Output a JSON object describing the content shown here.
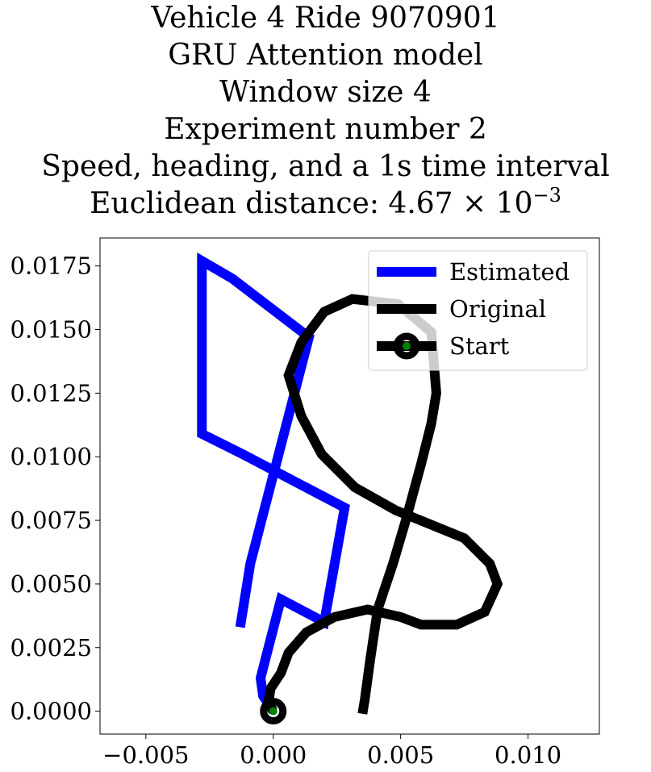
{
  "chart_data": {
    "type": "line",
    "title_lines": [
      "Vehicle 4 Ride 9070901",
      "GRU Attention model",
      "Window size 4",
      "Experiment number 2",
      "Speed, heading, and a 1s time interval"
    ],
    "title_distance": {
      "prefix": "Euclidean distance: 4.67 × 10",
      "exponent": "−3"
    },
    "xlim": [
      -0.0068,
      0.0128
    ],
    "ylim": [
      -0.0009,
      0.0186
    ],
    "x_ticks": [
      {
        "value": -0.005,
        "label": "−0.005"
      },
      {
        "value": 0.0,
        "label": "0.000"
      },
      {
        "value": 0.005,
        "label": "0.005"
      },
      {
        "value": 0.01,
        "label": "0.010"
      }
    ],
    "y_ticks": [
      {
        "value": 0.0,
        "label": "0.0000"
      },
      {
        "value": 0.0025,
        "label": "0.0025"
      },
      {
        "value": 0.005,
        "label": "0.0050"
      },
      {
        "value": 0.0075,
        "label": "0.0075"
      },
      {
        "value": 0.01,
        "label": "0.0100"
      },
      {
        "value": 0.0125,
        "label": "0.0125"
      },
      {
        "value": 0.015,
        "label": "0.0150"
      },
      {
        "value": 0.0175,
        "label": "0.0175"
      }
    ],
    "grid": false,
    "legend_position": "top-right",
    "series": [
      {
        "name": "Estimated",
        "color": "#0000ff",
        "x": [
          0.0,
          -0.0004,
          -0.0005,
          0.0003,
          0.002,
          0.0028,
          -0.0012,
          -0.0028,
          -0.0028,
          -0.0016,
          0.0014,
          -0.0009,
          -0.0013
        ],
        "y": [
          0.0,
          0.0006,
          0.0013,
          0.0044,
          0.0035,
          0.008,
          0.0101,
          0.0109,
          0.0177,
          0.017,
          0.0147,
          0.0058,
          0.0033
        ]
      },
      {
        "name": "Original",
        "color": "#000000",
        "x": [
          0.0,
          -0.0002,
          -0.0001,
          0.0003,
          0.0006,
          0.0013,
          0.0024,
          0.0037,
          0.005,
          0.0058,
          0.0072,
          0.0083,
          0.0088,
          0.0085,
          0.0075,
          0.0048,
          0.0032,
          0.0019,
          0.0011,
          0.0006,
          0.0011,
          0.002,
          0.0031,
          0.0049,
          0.0062,
          0.0064,
          0.0062,
          0.0058,
          0.0052,
          0.0047,
          0.0041,
          0.0038,
          0.0036,
          0.0035
        ],
        "y": [
          0.0,
          0.0003,
          0.0009,
          0.0015,
          0.0023,
          0.0031,
          0.0037,
          0.004,
          0.0037,
          0.0034,
          0.0034,
          0.0039,
          0.005,
          0.0058,
          0.0068,
          0.0079,
          0.0088,
          0.0101,
          0.0116,
          0.0132,
          0.0145,
          0.0157,
          0.0162,
          0.016,
          0.0149,
          0.0125,
          0.0113,
          0.0097,
          0.0075,
          0.0058,
          0.004,
          0.002,
          0.0005,
          -0.0001
        ]
      }
    ],
    "start": {
      "name": "Start",
      "x": 0.0,
      "y": 0.0,
      "color": "#000000",
      "inner_color": "#008000"
    }
  }
}
